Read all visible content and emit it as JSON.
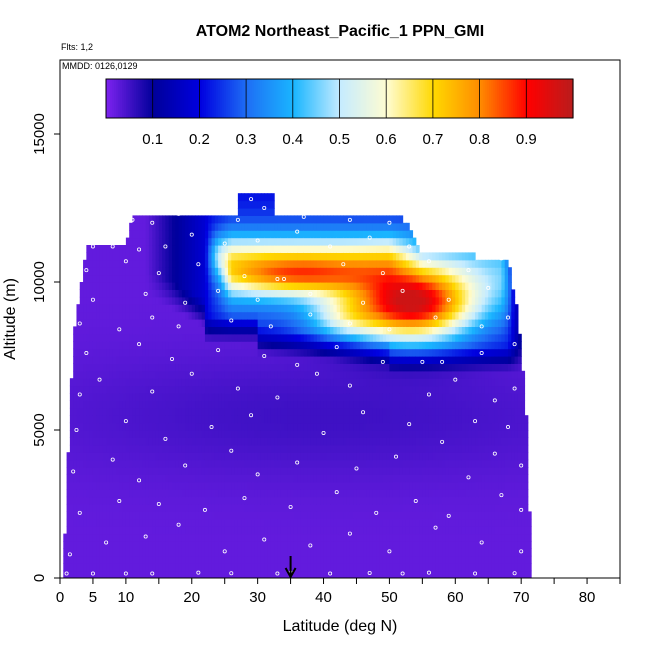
{
  "chart_data": {
    "type": "heatmap",
    "title": "ATOM2 Northeast_Pacific_1 PPN_GMI",
    "subtitle_lines": [
      "Flts: 1,2",
      "MMDD: 0126,0129"
    ],
    "xlabel": "Latitude (deg N)",
    "ylabel": "Altitude (m)",
    "xlim": [
      0,
      85
    ],
    "ylim": [
      0,
      17500
    ],
    "x_ticks": [
      0,
      5,
      10,
      20,
      30,
      40,
      50,
      60,
      70,
      80
    ],
    "x_minor_ticks": [
      15,
      25,
      35,
      45,
      55,
      65,
      75,
      85
    ],
    "y_ticks": [
      0,
      5000,
      10000,
      15000
    ],
    "colorbar": {
      "ticks": [
        0.1,
        0.2,
        0.3,
        0.4,
        0.5,
        0.6,
        0.7,
        0.8,
        0.9
      ],
      "range": [
        0,
        1
      ],
      "colors": [
        "#7b22ee",
        "#00009a",
        "#0000e0",
        "#1e6ff5",
        "#1ab6ff",
        "#c6ecff",
        "#fffcd0",
        "#ffd800",
        "#ff8a00",
        "#ff0000",
        "#b81d1d"
      ]
    },
    "arrow_latitude": 35,
    "value_field": {
      "description": "PPN_GMI mixing ratio fraction by latitude (deg N) and altitude (m)",
      "x_range": [
        0.5,
        71.5
      ],
      "envelope_top_altitude_m": [
        [
          0.5,
          0
        ],
        [
          1,
          3000
        ],
        [
          1.5,
          5500
        ],
        [
          2,
          8200
        ],
        [
          3,
          9600
        ],
        [
          4,
          11200
        ],
        [
          10,
          11200
        ],
        [
          11,
          12200
        ],
        [
          27,
          12200
        ],
        [
          27,
          12900
        ],
        [
          32.5,
          12900
        ],
        [
          32.5,
          12200
        ],
        [
          52,
          12200
        ],
        [
          55,
          11000
        ],
        [
          68,
          10800
        ],
        [
          69.5,
          8800
        ],
        [
          70,
          7500
        ],
        [
          70.5,
          6300
        ],
        [
          71,
          4600
        ],
        [
          71.5,
          0
        ]
      ],
      "high_value_core": {
        "latitude_range_deg": [
          47,
          60
        ],
        "altitude_range_m": [
          8200,
          10200
        ],
        "peak_value": 0.95
      },
      "background_value": 0.02
    },
    "sample_points": [
      [
        1,
        150
      ],
      [
        5,
        150
      ],
      [
        10,
        150
      ],
      [
        14,
        150
      ],
      [
        21,
        180
      ],
      [
        26,
        160
      ],
      [
        33,
        150
      ],
      [
        35,
        180
      ],
      [
        41,
        150
      ],
      [
        47,
        170
      ],
      [
        52,
        150
      ],
      [
        56,
        180
      ],
      [
        63,
        150
      ],
      [
        69,
        160
      ],
      [
        1.5,
        800
      ],
      [
        7,
        1200
      ],
      [
        13,
        1400
      ],
      [
        18,
        1800
      ],
      [
        25,
        900
      ],
      [
        31,
        1300
      ],
      [
        38,
        1100
      ],
      [
        44,
        1500
      ],
      [
        50,
        900
      ],
      [
        57,
        1700
      ],
      [
        64,
        1200
      ],
      [
        70,
        900
      ],
      [
        3,
        2200
      ],
      [
        9,
        2600
      ],
      [
        15,
        2500
      ],
      [
        22,
        2300
      ],
      [
        28,
        2700
      ],
      [
        35,
        2400
      ],
      [
        42,
        2900
      ],
      [
        48,
        2200
      ],
      [
        54,
        2600
      ],
      [
        59,
        2100
      ],
      [
        67,
        2800
      ],
      [
        70,
        2300
      ],
      [
        2,
        3600
      ],
      [
        8,
        4000
      ],
      [
        12,
        3300
      ],
      [
        19,
        3800
      ],
      [
        26,
        4300
      ],
      [
        30,
        3500
      ],
      [
        36,
        3900
      ],
      [
        45,
        3700
      ],
      [
        51,
        4100
      ],
      [
        62,
        3400
      ],
      [
        66,
        4200
      ],
      [
        70,
        3800
      ],
      [
        2.5,
        5000
      ],
      [
        10,
        5300
      ],
      [
        16,
        4700
      ],
      [
        23,
        5100
      ],
      [
        29,
        5500
      ],
      [
        40,
        4900
      ],
      [
        46,
        5600
      ],
      [
        53,
        5200
      ],
      [
        58,
        4600
      ],
      [
        63,
        5300
      ],
      [
        68,
        5100
      ],
      [
        3,
        6200
      ],
      [
        6,
        6700
      ],
      [
        14,
        6300
      ],
      [
        20,
        6900
      ],
      [
        27,
        6400
      ],
      [
        33,
        6100
      ],
      [
        39,
        6900
      ],
      [
        44,
        6500
      ],
      [
        56,
        6200
      ],
      [
        60,
        6700
      ],
      [
        66,
        6000
      ],
      [
        69,
        6400
      ],
      [
        4,
        7600
      ],
      [
        12,
        7900
      ],
      [
        17,
        7400
      ],
      [
        24,
        7700
      ],
      [
        31,
        7500
      ],
      [
        36,
        7200
      ],
      [
        42,
        7800
      ],
      [
        49,
        7300
      ],
      [
        55,
        7300
      ],
      [
        58,
        7300
      ],
      [
        64,
        7600
      ],
      [
        69,
        7900
      ],
      [
        3,
        8600
      ],
      [
        9,
        8400
      ],
      [
        14,
        8800
      ],
      [
        18,
        8500
      ],
      [
        26,
        8700
      ],
      [
        32,
        8500
      ],
      [
        38,
        8900
      ],
      [
        44,
        8600
      ],
      [
        50,
        8400
      ],
      [
        57,
        8800
      ],
      [
        64,
        8500
      ],
      [
        68,
        8800
      ],
      [
        5,
        9400
      ],
      [
        13,
        9600
      ],
      [
        19,
        9300
      ],
      [
        24,
        9700
      ],
      [
        30,
        9400
      ],
      [
        34,
        10100
      ],
      [
        38,
        9600
      ],
      [
        46,
        9300
      ],
      [
        52,
        9700
      ],
      [
        59,
        9400
      ],
      [
        65,
        9800
      ],
      [
        4,
        10400
      ],
      [
        10,
        10700
      ],
      [
        15,
        10300
      ],
      [
        21,
        10600
      ],
      [
        28,
        10200
      ],
      [
        33,
        10100
      ],
      [
        43,
        10600
      ],
      [
        49,
        10300
      ],
      [
        56,
        10700
      ],
      [
        62,
        10400
      ],
      [
        67,
        10800
      ],
      [
        5,
        11200
      ],
      [
        8,
        11200
      ],
      [
        12,
        11100
      ],
      [
        16,
        11200
      ],
      [
        20,
        11600
      ],
      [
        25,
        11300
      ],
      [
        30,
        11400
      ],
      [
        36,
        11700
      ],
      [
        41,
        11200
      ],
      [
        47,
        11500
      ],
      [
        53,
        11200
      ],
      [
        11,
        12100
      ],
      [
        14,
        12000
      ],
      [
        18,
        12300
      ],
      [
        21,
        12400
      ],
      [
        27,
        12100
      ],
      [
        29,
        12800
      ],
      [
        31,
        12500
      ],
      [
        37,
        12200
      ],
      [
        44,
        12100
      ],
      [
        50,
        12000
      ]
    ]
  }
}
